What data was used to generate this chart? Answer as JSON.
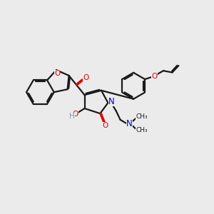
{
  "bg": "#ebebeb",
  "bc": "#1a1a1a",
  "oc": "#dd0000",
  "nc": "#0000cc",
  "hc": "#7a9a9a",
  "lw": 1.6,
  "fs": 7.5,
  "figsize": [
    3.0,
    3.0
  ],
  "dpi": 100,
  "xlim": [
    0,
    10
  ],
  "ylim": [
    0,
    10
  ]
}
